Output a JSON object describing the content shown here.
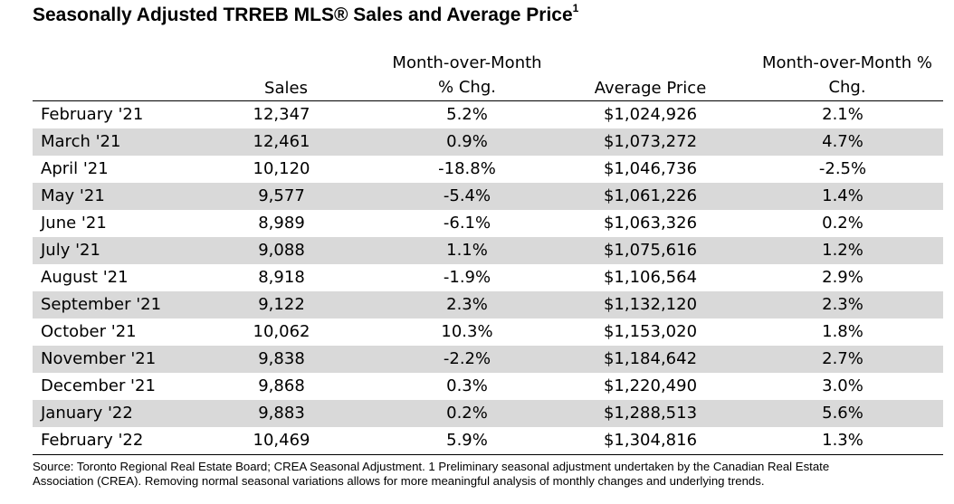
{
  "title": "Seasonally Adjusted TRREB MLS® Sales and Average Price",
  "title_footnote": "1",
  "headers": {
    "sales": "Sales",
    "mom_chg_line1": "Month-over-Month",
    "mom_chg_line2": "% Chg.",
    "avg_price": "Average Price",
    "mom_pct_line1": "Month-over-Month %",
    "mom_pct_line2": "Chg."
  },
  "rows": [
    {
      "month": "February '21",
      "sales": "12,347",
      "sales_chg": "5.2%",
      "price": "$1,024,926",
      "price_chg": "2.1%"
    },
    {
      "month": "March '21",
      "sales": "12,461",
      "sales_chg": "0.9%",
      "price": "$1,073,272",
      "price_chg": "4.7%"
    },
    {
      "month": "April '21",
      "sales": "10,120",
      "sales_chg": "-18.8%",
      "price": "$1,046,736",
      "price_chg": "-2.5%"
    },
    {
      "month": "May '21",
      "sales": "9,577",
      "sales_chg": "-5.4%",
      "price": "$1,061,226",
      "price_chg": "1.4%"
    },
    {
      "month": "June '21",
      "sales": "8,989",
      "sales_chg": "-6.1%",
      "price": "$1,063,326",
      "price_chg": "0.2%"
    },
    {
      "month": "July '21",
      "sales": "9,088",
      "sales_chg": "1.1%",
      "price": "$1,075,616",
      "price_chg": "1.2%"
    },
    {
      "month": "August '21",
      "sales": "8,918",
      "sales_chg": "-1.9%",
      "price": "$1,106,564",
      "price_chg": "2.9%"
    },
    {
      "month": "September '21",
      "sales": "9,122",
      "sales_chg": "2.3%",
      "price": "$1,132,120",
      "price_chg": "2.3%"
    },
    {
      "month": "October '21",
      "sales": "10,062",
      "sales_chg": "10.3%",
      "price": "$1,153,020",
      "price_chg": "1.8%"
    },
    {
      "month": "November '21",
      "sales": "9,838",
      "sales_chg": "-2.2%",
      "price": "$1,184,642",
      "price_chg": "2.7%"
    },
    {
      "month": "December '21",
      "sales": "9,868",
      "sales_chg": "0.3%",
      "price": "$1,220,490",
      "price_chg": "3.0%"
    },
    {
      "month": "January '22",
      "sales": "9,883",
      "sales_chg": "0.2%",
      "price": "$1,288,513",
      "price_chg": "5.6%"
    },
    {
      "month": "February '22",
      "sales": "10,469",
      "sales_chg": "5.9%",
      "price": "$1,304,816",
      "price_chg": "1.3%"
    }
  ],
  "source_line1": "Source: Toronto Regional Real Estate Board; CREA Seasonal Adjustment. 1 Preliminary seasonal adjustment undertaken by the Canadian Real Estate",
  "source_line2": "Association (CREA).  Removing normal seasonal variations allows for more meaningful analysis of monthly changes and underlying trends.",
  "colors": {
    "shaded_row": "#d9d9d9",
    "text": "#000000",
    "background": "#ffffff"
  }
}
